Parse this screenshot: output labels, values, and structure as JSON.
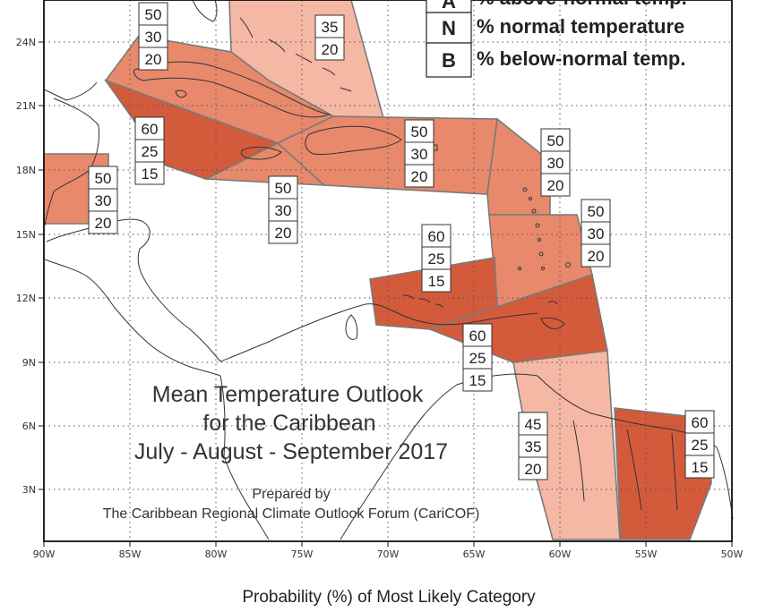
{
  "title": {
    "line1": "Mean Temperature Outlook",
    "line2": "for the Caribbean",
    "line3": "July - August - September 2017"
  },
  "credit": {
    "line1": "Prepared by",
    "line2": "The Caribbean Regional Climate Outlook Forum (CariCOF)"
  },
  "footer": "Probability (%) of Most Likely Category",
  "legend": [
    {
      "key": "A",
      "text": "% above-normal temp."
    },
    {
      "key": "N",
      "text": "% normal temperature"
    },
    {
      "key": "B",
      "text": "% below-normal temp."
    }
  ],
  "x_ticks": [
    "90W",
    "85W",
    "80W",
    "75W",
    "70W",
    "65W",
    "60W",
    "55W",
    "50W"
  ],
  "y_ticks": [
    "3N",
    "6N",
    "9N",
    "12N",
    "15N",
    "18N",
    "21N",
    "24N"
  ],
  "colors": {
    "p45": "#f5b8a4",
    "p50": "#e8896c",
    "p60": "#d45a3c",
    "outline": "#7a7a7a",
    "coast": "#333333"
  },
  "regions": [
    {
      "name": "bahamas",
      "probs": [
        "",
        "35",
        "20"
      ],
      "level": "p45"
    },
    {
      "name": "cuba",
      "probs": [
        "50",
        "30",
        "20"
      ],
      "level": "p50"
    },
    {
      "name": "cayman-jamaica-sea",
      "probs": [
        "60",
        "25",
        "15"
      ],
      "level": "p60"
    },
    {
      "name": "belize",
      "probs": [
        "50",
        "30",
        "20"
      ],
      "level": "p50"
    },
    {
      "name": "jamaica",
      "probs": [
        "50",
        "30",
        "20"
      ],
      "level": "p50"
    },
    {
      "name": "hispaniola-puerto-rico",
      "probs": [
        "50",
        "30",
        "20"
      ],
      "level": "p50"
    },
    {
      "name": "leeward-islands",
      "probs": [
        "50",
        "30",
        "20"
      ],
      "level": "p50"
    },
    {
      "name": "windward-islands",
      "probs": [
        "50",
        "30",
        "20"
      ],
      "level": "p50"
    },
    {
      "name": "abc-islands",
      "probs": [
        "60",
        "25",
        "15"
      ],
      "level": "p60"
    },
    {
      "name": "trinidad-tobago",
      "probs": [
        "60",
        "25",
        "15"
      ],
      "level": "p60"
    },
    {
      "name": "guyana",
      "probs": [
        "45",
        "35",
        "20"
      ],
      "level": "p45"
    },
    {
      "name": "suriname-french-guiana",
      "probs": [
        "60",
        "25",
        "15"
      ],
      "level": "p60"
    }
  ]
}
